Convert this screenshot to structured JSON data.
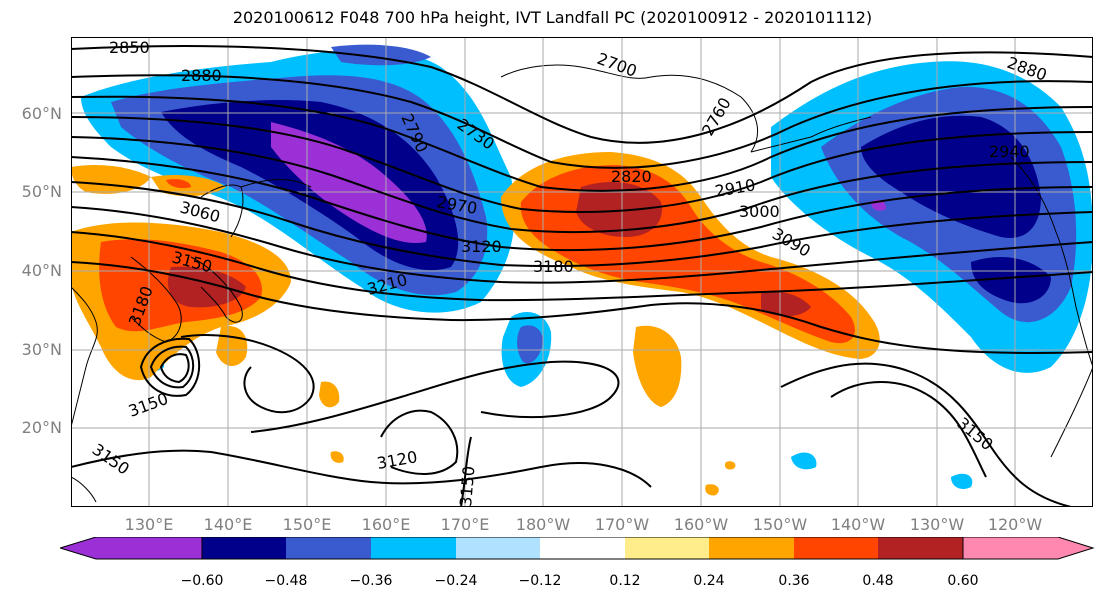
{
  "title": "2020100612 F048 700 hPa height, IVT Landfall PC (2020100912 - 2020101112)",
  "map": {
    "lat_labels": [
      "60°N",
      "50°N",
      "40°N",
      "30°N",
      "20°N"
    ],
    "lon_labels": [
      "130°E",
      "140°E",
      "150°E",
      "160°E",
      "170°E",
      "180°W",
      "170°W",
      "160°W",
      "150°W",
      "140°W",
      "130°W",
      "120°W"
    ],
    "contour_labels": [
      "2850",
      "2880",
      "2700",
      "2790",
      "2730",
      "2760",
      "2880",
      "2820",
      "2940",
      "2910",
      "3000",
      "2970",
      "3060",
      "3120",
      "3090",
      "3180",
      "3150",
      "3210",
      "3180",
      "3150",
      "3150",
      "3150",
      "3120",
      "3150",
      "3150"
    ]
  },
  "colorbar": {
    "ticks": [
      "−0.60",
      "−0.48",
      "−0.36",
      "−0.24",
      "−0.12",
      "0.12",
      "0.24",
      "0.36",
      "0.48",
      "0.60"
    ],
    "colors": [
      "#9b30d6",
      "#00008b",
      "#3a5bd0",
      "#00bfff",
      "#b0e2ff",
      "#ffffff",
      "#ffec8b",
      "#ffa500",
      "#ff4500",
      "#b22222",
      "#ff88b0"
    ]
  }
}
